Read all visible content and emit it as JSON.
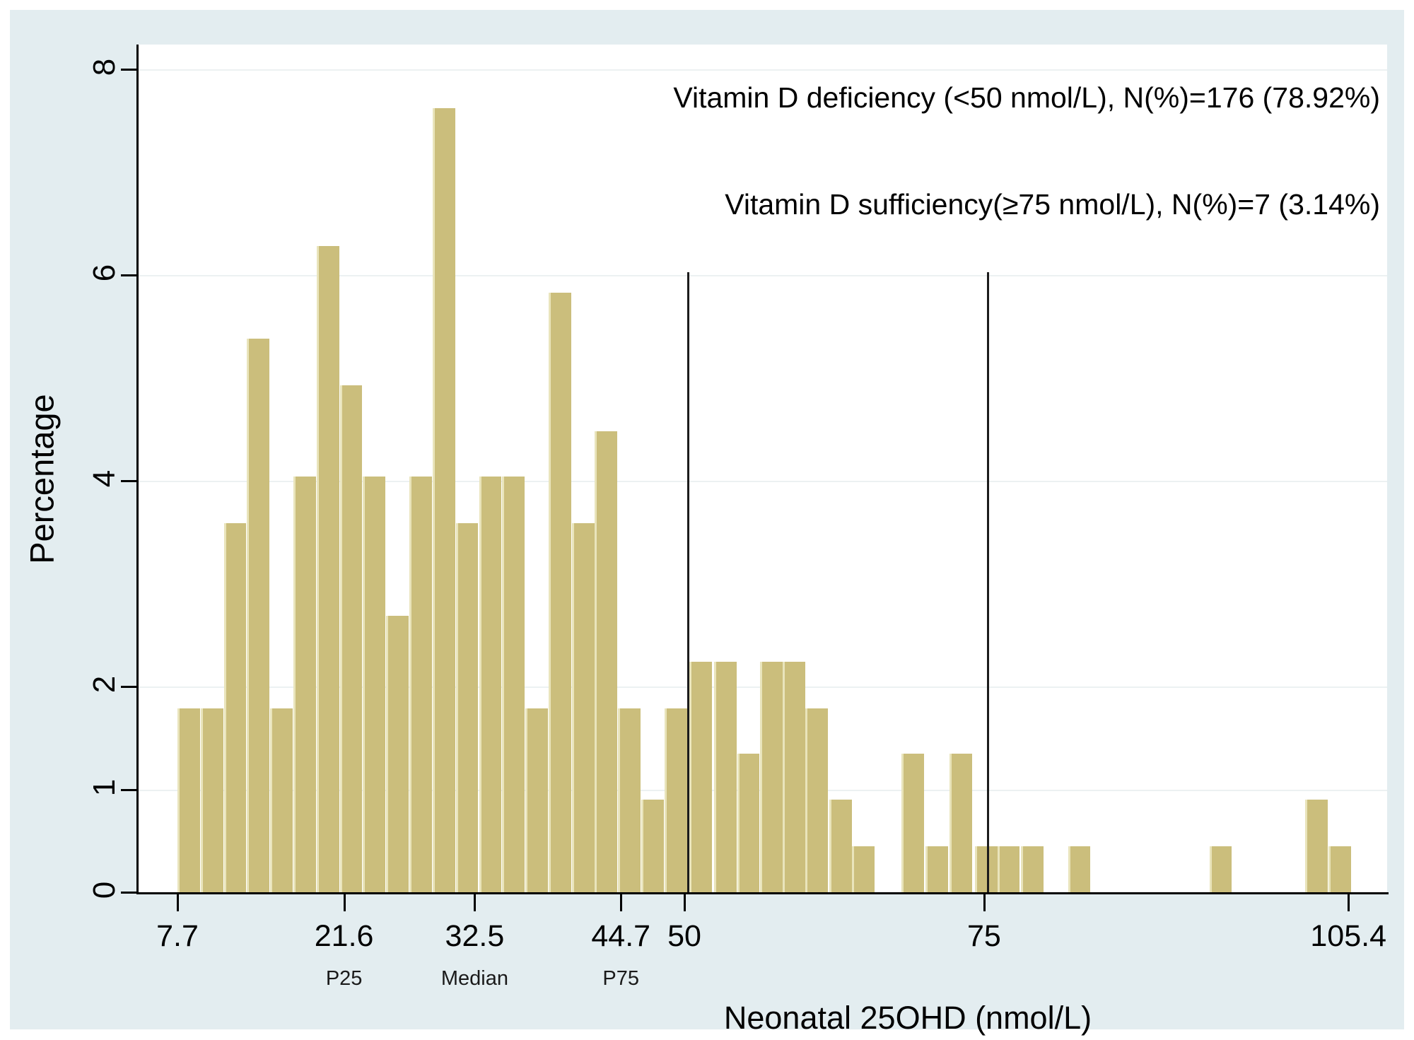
{
  "figure": {
    "background_color": "#e3edf0",
    "plot_background_color": "#ffffff",
    "bar_color": "#cbbe7c",
    "bar_edge_color": "#e9e4bb",
    "gridline_color": "#ecf1f2",
    "axis_color": "#000000",
    "refline_color": "#1c1c1c"
  },
  "chart_data": {
    "type": "bar",
    "subtype": "histogram",
    "title": "",
    "xlabel": "Neonatal 25OHD (nmol/L)",
    "ylabel": "Percentage",
    "xlim": [
      7.7,
      105.4
    ],
    "ylim": [
      0,
      8
    ],
    "bin_width": 1.93,
    "grid": "horizontal-light",
    "legend_position": "none",
    "bins": [
      {
        "x": 7.7,
        "pct": 1.79,
        "count": 4
      },
      {
        "x": 9.64,
        "pct": 1.79,
        "count": 4
      },
      {
        "x": 11.57,
        "pct": 3.59,
        "count": 8
      },
      {
        "x": 13.51,
        "pct": 5.38,
        "count": 12
      },
      {
        "x": 15.44,
        "pct": 1.79,
        "count": 4
      },
      {
        "x": 17.38,
        "pct": 4.04,
        "count": 9
      },
      {
        "x": 19.31,
        "pct": 6.28,
        "count": 14
      },
      {
        "x": 21.25,
        "pct": 4.93,
        "count": 11
      },
      {
        "x": 23.18,
        "pct": 4.04,
        "count": 9
      },
      {
        "x": 25.12,
        "pct": 2.69,
        "count": 6
      },
      {
        "x": 27.05,
        "pct": 4.04,
        "count": 9
      },
      {
        "x": 28.99,
        "pct": 7.62,
        "count": 17
      },
      {
        "x": 30.92,
        "pct": 3.59,
        "count": 8
      },
      {
        "x": 32.86,
        "pct": 4.04,
        "count": 9
      },
      {
        "x": 34.79,
        "pct": 4.04,
        "count": 9
      },
      {
        "x": 36.73,
        "pct": 1.79,
        "count": 4
      },
      {
        "x": 38.66,
        "pct": 5.83,
        "count": 13
      },
      {
        "x": 40.6,
        "pct": 3.59,
        "count": 8
      },
      {
        "x": 42.53,
        "pct": 4.48,
        "count": 10
      },
      {
        "x": 44.47,
        "pct": 1.79,
        "count": 4
      },
      {
        "x": 46.4,
        "pct": 0.9,
        "count": 2
      },
      {
        "x": 48.34,
        "pct": 1.79,
        "count": 4
      },
      {
        "x": 50.4,
        "pct": 2.24,
        "count": 5
      },
      {
        "x": 52.5,
        "pct": 2.24,
        "count": 5
      },
      {
        "x": 54.4,
        "pct": 1.35,
        "count": 3
      },
      {
        "x": 56.3,
        "pct": 2.24,
        "count": 5
      },
      {
        "x": 58.2,
        "pct": 2.24,
        "count": 5
      },
      {
        "x": 60.1,
        "pct": 1.79,
        "count": 4
      },
      {
        "x": 62.1,
        "pct": 0.9,
        "count": 2
      },
      {
        "x": 64.0,
        "pct": 0.45,
        "count": 1
      },
      {
        "x": 68.1,
        "pct": 1.35,
        "count": 3
      },
      {
        "x": 70.1,
        "pct": 0.45,
        "count": 1
      },
      {
        "x": 72.1,
        "pct": 1.35,
        "count": 3
      },
      {
        "x": 74.25,
        "pct": 0.45,
        "count": 1
      },
      {
        "x": 76.1,
        "pct": 0.45,
        "count": 1
      },
      {
        "x": 78.1,
        "pct": 0.45,
        "count": 1
      },
      {
        "x": 82.0,
        "pct": 0.45,
        "count": 1
      },
      {
        "x": 93.8,
        "pct": 0.45,
        "count": 1
      },
      {
        "x": 101.8,
        "pct": 0.9,
        "count": 2
      },
      {
        "x": 103.75,
        "pct": 0.45,
        "count": 1
      }
    ],
    "xticks": [
      {
        "v": 7.7,
        "label": "7.7",
        "sub": ""
      },
      {
        "v": 21.6,
        "label": "21.6",
        "sub": "P25"
      },
      {
        "v": 32.5,
        "label": "32.5",
        "sub": "Median"
      },
      {
        "v": 44.7,
        "label": "44.7",
        "sub": "P75"
      },
      {
        "v": 50,
        "label": "50",
        "sub": ""
      },
      {
        "v": 75,
        "label": "75",
        "sub": ""
      },
      {
        "v": 105.4,
        "label": "105.4",
        "sub": ""
      }
    ],
    "yticks": [
      {
        "v": 0,
        "label": "0"
      },
      {
        "v": 1,
        "label": "1"
      },
      {
        "v": 2,
        "label": "2"
      },
      {
        "v": 4,
        "label": "4"
      },
      {
        "v": 6,
        "label": "6"
      },
      {
        "v": 8,
        "label": "8"
      }
    ],
    "gridline_values": [
      1,
      2,
      4,
      6,
      8
    ],
    "reference_lines": [
      {
        "v": 50,
        "top_pct": 6.03
      },
      {
        "v": 75,
        "top_pct": 6.03
      }
    ]
  },
  "annotations": [
    {
      "text": "Vitamin D deficiency (<50 nmol/L), N(%)=176 (78.92%)"
    },
    {
      "text": "Vitamin D sufficiency(≥75 nmol/L), N(%)=7 (3.14%)"
    }
  ]
}
